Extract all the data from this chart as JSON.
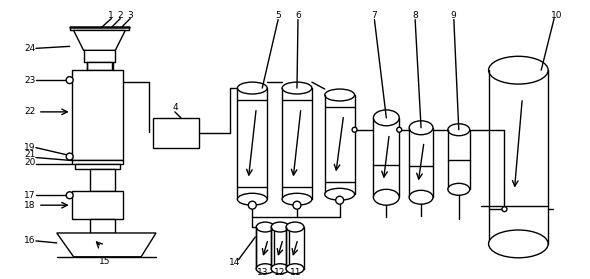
{
  "bg_color": "#ffffff",
  "line_color": "#000000",
  "lw": 1.0,
  "lw_thick": 1.8,
  "fs": 6.5,
  "fig_w": 5.9,
  "fig_h": 2.79,
  "dpi": 100
}
